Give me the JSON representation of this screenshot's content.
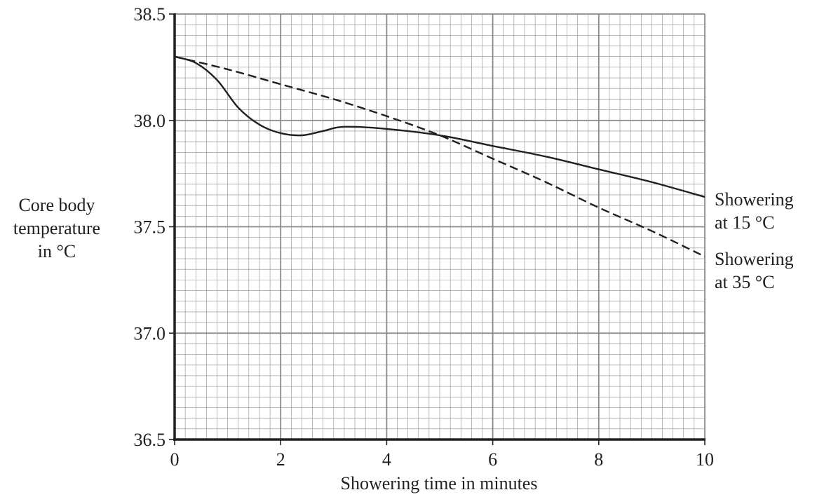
{
  "chart_data": {
    "type": "line",
    "title": "",
    "xlabel": "Showering time in minutes",
    "ylabel": [
      "Core body",
      "temperature",
      "in °C"
    ],
    "xlim": [
      0,
      10
    ],
    "ylim": [
      36.5,
      38.5
    ],
    "x_ticks": [
      "0",
      "2",
      "4",
      "6",
      "8",
      "10"
    ],
    "y_ticks": [
      "36.5",
      "37.0",
      "37.5",
      "38.0",
      "38.5"
    ],
    "grid": true,
    "series": [
      {
        "name": "Showering at 15 °C",
        "label_lines": [
          "Showering",
          "at 15 °C"
        ],
        "style": "solid",
        "color": "#231f20",
        "x": [
          0,
          0.4,
          0.8,
          1.2,
          1.6,
          2.0,
          2.4,
          2.8,
          3.2,
          4.0,
          5.0,
          6.0,
          7.0,
          8.0,
          9.0,
          10.0
        ],
        "y": [
          38.3,
          38.27,
          38.19,
          38.06,
          37.98,
          37.94,
          37.93,
          37.95,
          37.97,
          37.96,
          37.93,
          37.88,
          37.83,
          37.77,
          37.71,
          37.64
        ]
      },
      {
        "name": "Showering at 35 °C",
        "label_lines": [
          "Showering",
          "at 35 °C"
        ],
        "style": "dashed",
        "color": "#231f20",
        "x": [
          0,
          1,
          2,
          3,
          4,
          5,
          6,
          7,
          8,
          9,
          10
        ],
        "y": [
          38.3,
          38.24,
          38.17,
          38.1,
          38.02,
          37.93,
          37.82,
          37.71,
          37.59,
          37.48,
          37.36
        ]
      }
    ]
  }
}
